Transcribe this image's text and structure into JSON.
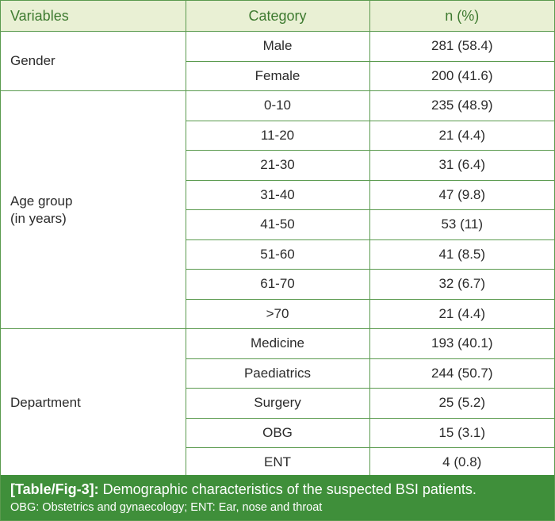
{
  "table": {
    "headers": [
      "Variables",
      "Category",
      "n (%)"
    ],
    "groups": [
      {
        "variable": "Gender",
        "rows": [
          {
            "category": "Male",
            "value": "281 (58.4)"
          },
          {
            "category": "Female",
            "value": "200 (41.6)"
          }
        ]
      },
      {
        "variable_line1": "Age group",
        "variable_line2": "(in years)",
        "rows": [
          {
            "category": "0-10",
            "value": "235 (48.9)"
          },
          {
            "category": "11-20",
            "value": "21 (4.4)"
          },
          {
            "category": "21-30",
            "value": "31 (6.4)"
          },
          {
            "category": "31-40",
            "value": "47 (9.8)"
          },
          {
            "category": "41-50",
            "value": "53 (11)"
          },
          {
            "category": "51-60",
            "value": "41 (8.5)"
          },
          {
            "category": "61-70",
            "value": "32 (6.7)"
          },
          {
            "category": ">70",
            "value": "21 (4.4)"
          }
        ]
      },
      {
        "variable": "Department",
        "rows": [
          {
            "category": "Medicine",
            "value": "193 (40.1)"
          },
          {
            "category": "Paediatrics",
            "value": "244 (50.7)"
          },
          {
            "category": "Surgery",
            "value": "25 (5.2)"
          },
          {
            "category": "OBG",
            "value": "15 (3.1)"
          },
          {
            "category": "ENT",
            "value": "4 (0.8)"
          }
        ]
      }
    ]
  },
  "caption": {
    "label": "[Table/Fig-3]:",
    "title": "Demographic characteristics of the suspected BSI patients.",
    "note": "OBG: Obstetrics and gynaecology; ENT: Ear, nose and throat"
  },
  "colors": {
    "header_bg": "#e9f0d4",
    "header_text": "#3d7a2f",
    "border": "#5a9a4e",
    "caption_bg": "#3f8f3a"
  }
}
